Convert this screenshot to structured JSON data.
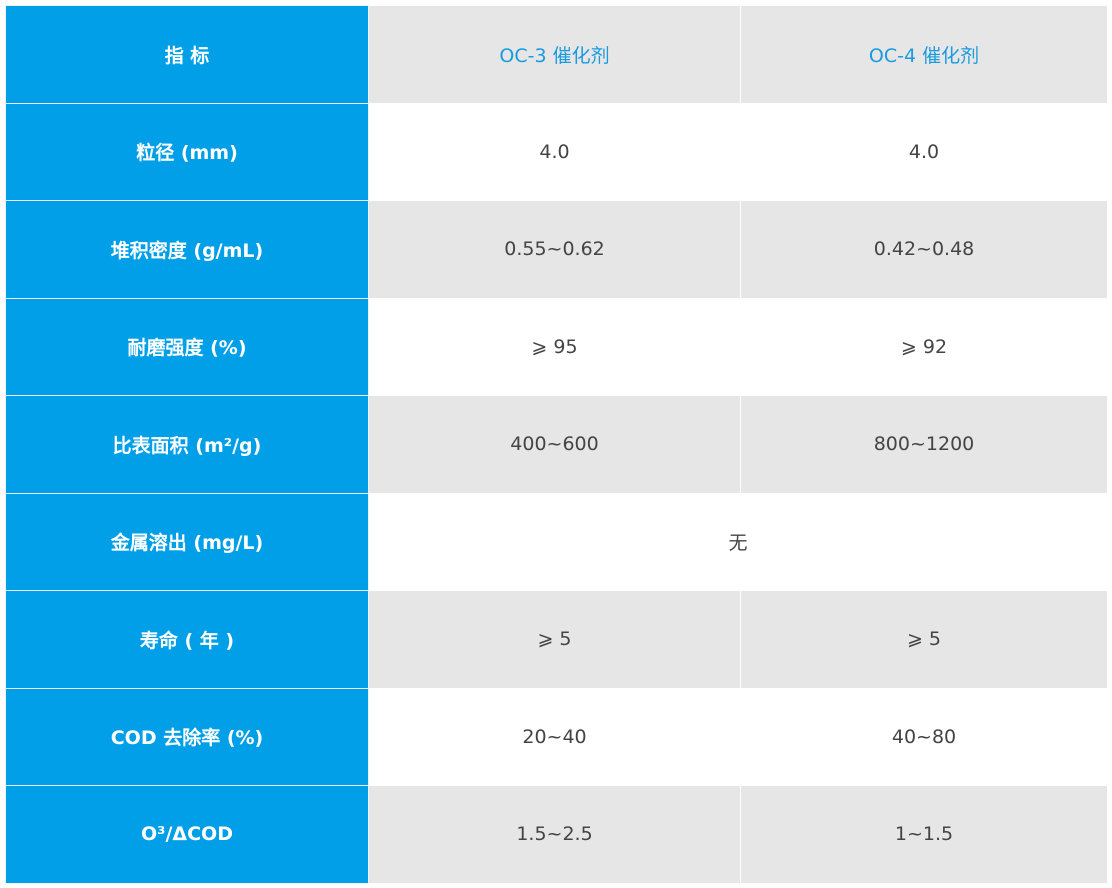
{
  "header": {
    "label": "指 标",
    "col1": "OC-3 催化剂",
    "col2": "OC-4 催化剂"
  },
  "rows": [
    {
      "label": "粒径 (mm)",
      "oc3": "4.0",
      "oc4": "4.0"
    },
    {
      "label": "堆积密度 (g/mL)",
      "oc3": "0.55~0.62",
      "oc4": "0.42~0.48"
    },
    {
      "label": "耐磨强度 (%)",
      "oc3": "⩾ 95",
      "oc4": "⩾ 92"
    },
    {
      "label": "比表面积 (m²/g)",
      "oc3": "400~600",
      "oc4": "800~1200"
    },
    {
      "label": "金属溶出 (mg/L)",
      "merged": "无"
    },
    {
      "label": "寿命 ( 年 )",
      "oc3": "⩾ 5",
      "oc4": "⩾ 5"
    },
    {
      "label": "COD 去除率 (%)",
      "oc3": "20~40",
      "oc4": "40~80"
    },
    {
      "label": "O³/ΔCOD",
      "oc3": "1.5~2.5",
      "oc4": "1~1.5"
    }
  ],
  "colors": {
    "label_bg": "#009fe8",
    "stripe_bg": "#e6e6e6",
    "header_text": "#1a9be0"
  }
}
